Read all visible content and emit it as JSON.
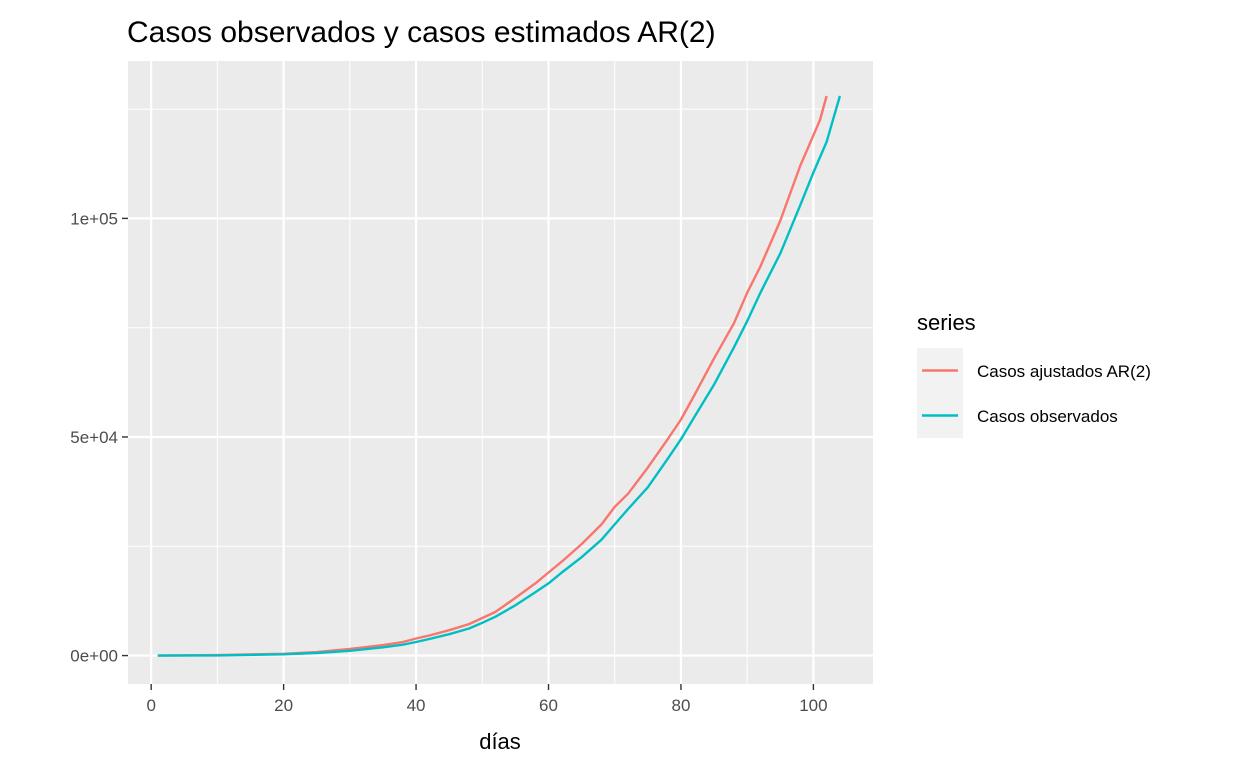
{
  "chart_data": {
    "type": "line",
    "title": "Casos observados y casos estimados AR(2)",
    "xlabel": "días",
    "ylabel": "",
    "xlim": [
      -3.5,
      109
    ],
    "ylim": [
      -6500,
      136000
    ],
    "x_ticks": [
      0,
      20,
      40,
      60,
      80,
      100
    ],
    "x_tick_labels": [
      "0",
      "20",
      "40",
      "60",
      "80",
      "100"
    ],
    "y_ticks": [
      0,
      50000,
      100000
    ],
    "y_tick_labels": [
      "0e+00",
      "5e+04",
      "1e+05"
    ],
    "grid": true,
    "legend": {
      "title": "series",
      "position": "right"
    },
    "series": [
      {
        "name": "Casos ajustados AR(2)",
        "color": "#F8766D",
        "x": [
          1,
          10,
          20,
          25,
          30,
          35,
          38,
          40,
          42,
          45,
          48,
          50,
          52,
          55,
          58,
          60,
          62,
          65,
          68,
          70,
          72,
          75,
          78,
          80,
          82,
          85,
          88,
          90,
          92,
          95,
          98,
          100,
          101,
          102
        ],
        "y": [
          0,
          100,
          400,
          800,
          1500,
          2400,
          3100,
          3900,
          4600,
          5800,
          7200,
          8600,
          10000,
          13200,
          16500,
          19000,
          21500,
          25500,
          30000,
          34000,
          37000,
          43000,
          49500,
          54000,
          59500,
          68000,
          76000,
          83000,
          89000,
          99500,
          112000,
          119000,
          122500,
          128000
        ]
      },
      {
        "name": "Casos observados",
        "color": "#00BFC4",
        "x": [
          1,
          10,
          20,
          25,
          30,
          35,
          38,
          40,
          42,
          45,
          48,
          50,
          52,
          55,
          58,
          60,
          62,
          65,
          68,
          70,
          72,
          75,
          78,
          80,
          82,
          85,
          88,
          90,
          92,
          95,
          98,
          100,
          102,
          104
        ],
        "y": [
          0,
          50,
          300,
          600,
          1100,
          1900,
          2500,
          3100,
          3800,
          4900,
          6200,
          7500,
          8900,
          11500,
          14500,
          16500,
          19000,
          22500,
          26500,
          30000,
          33500,
          38500,
          45000,
          49500,
          54500,
          62000,
          70500,
          76500,
          83000,
          92000,
          103000,
          110500,
          117500,
          128000
        ]
      }
    ]
  }
}
